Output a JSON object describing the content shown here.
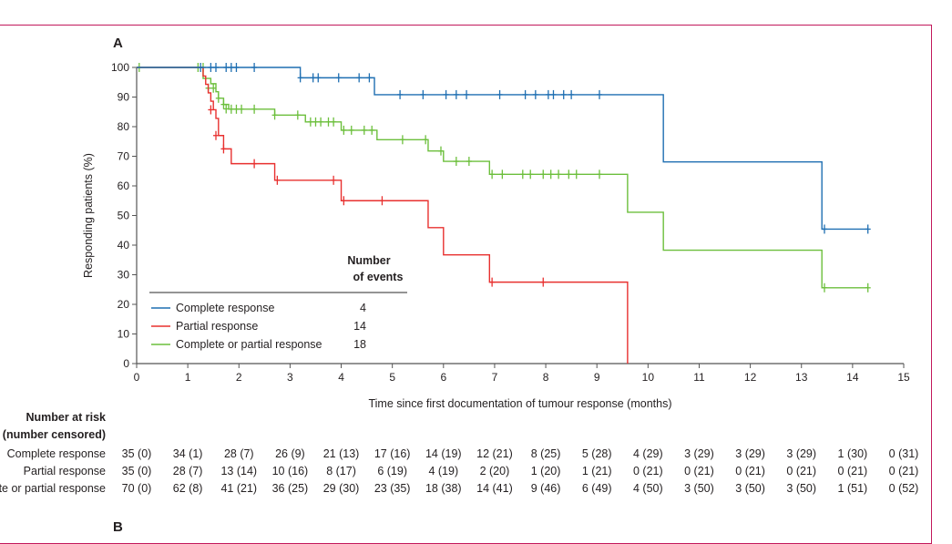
{
  "panel_labels": {
    "a": "A",
    "b": "B"
  },
  "legend": {
    "header_line1": "Number",
    "header_line2": "of events",
    "items": [
      {
        "label": "Complete response",
        "events": "4",
        "color": "#1f6fb2"
      },
      {
        "label": "Partial response",
        "events": "14",
        "color": "#e8302f"
      },
      {
        "label": "Complete or partial response",
        "events": "18",
        "color": "#6cbf3c"
      }
    ]
  },
  "risk_table": {
    "title_line1": "Number at risk",
    "title_line2": "(number censored)",
    "rows": [
      {
        "label": "Complete response",
        "values": [
          "35 (0)",
          "34 (1)",
          "28 (7)",
          "26 (9)",
          "21 (13)",
          "17 (16)",
          "14 (19)",
          "12 (21)",
          "8 (25)",
          "5 (28)",
          "4 (29)",
          "3 (29)",
          "3 (29)",
          "3 (29)",
          "1 (30)",
          "0 (31)"
        ]
      },
      {
        "label": "Partial response",
        "values": [
          "35 (0)",
          "28 (7)",
          "13 (14)",
          "10 (16)",
          "8 (17)",
          "6 (19)",
          "4 (19)",
          "2 (20)",
          "1 (20)",
          "1 (21)",
          "0 (21)",
          "0 (21)",
          "0 (21)",
          "0 (21)",
          "0 (21)",
          "0 (21)"
        ]
      },
      {
        "label": "Complete or partial response",
        "values": [
          "70 (0)",
          "62 (8)",
          "41 (21)",
          "36 (25)",
          "29 (30)",
          "23 (35)",
          "18 (38)",
          "14 (41)",
          "9 (46)",
          "6 (49)",
          "4 (50)",
          "3 (50)",
          "3 (50)",
          "3 (50)",
          "1 (51)",
          "0 (52)"
        ]
      }
    ]
  },
  "chart_data": {
    "type": "line",
    "subtype": "kaplan-meier-step",
    "xlabel": "Time since first documentation of tumour response (months)",
    "ylabel": "Responding patients (%)",
    "xlim": [
      0,
      15
    ],
    "ylim": [
      0,
      100
    ],
    "xticks": [
      "0",
      "1",
      "2",
      "3",
      "4",
      "5",
      "6",
      "7",
      "8",
      "9",
      "10",
      "11",
      "12",
      "13",
      "14",
      "15"
    ],
    "yticks": [
      "0",
      "10",
      "20",
      "30",
      "40",
      "50",
      "60",
      "70",
      "80",
      "90",
      "100"
    ],
    "grid": false,
    "legend_position": "bottom-left",
    "series": [
      {
        "name": "Complete response",
        "color": "#1f6fb2",
        "steps": [
          [
            0,
            100
          ],
          [
            3.2,
            96.5
          ],
          [
            4.65,
            90.8
          ],
          [
            10.3,
            68.1
          ],
          [
            13.4,
            45.4
          ],
          [
            14.3,
            45.4
          ]
        ],
        "censored": [
          [
            1.25,
            100
          ],
          [
            1.45,
            100
          ],
          [
            1.55,
            100
          ],
          [
            1.75,
            100
          ],
          [
            1.85,
            100
          ],
          [
            1.95,
            100
          ],
          [
            2.3,
            100
          ],
          [
            3.2,
            96.5
          ],
          [
            3.45,
            96.5
          ],
          [
            3.55,
            96.5
          ],
          [
            3.95,
            96.5
          ],
          [
            4.35,
            96.5
          ],
          [
            4.55,
            96.5
          ],
          [
            5.15,
            90.8
          ],
          [
            5.6,
            90.8
          ],
          [
            6.05,
            90.8
          ],
          [
            6.25,
            90.8
          ],
          [
            6.45,
            90.8
          ],
          [
            7.1,
            90.8
          ],
          [
            7.6,
            90.8
          ],
          [
            7.8,
            90.8
          ],
          [
            8.05,
            90.8
          ],
          [
            8.15,
            90.8
          ],
          [
            8.35,
            90.8
          ],
          [
            8.5,
            90.8
          ],
          [
            9.05,
            90.8
          ],
          [
            13.45,
            45.4
          ],
          [
            14.3,
            45.4
          ]
        ]
      },
      {
        "name": "Partial response",
        "color": "#e8302f",
        "steps": [
          [
            0,
            100
          ],
          [
            1.3,
            97.1
          ],
          [
            1.35,
            94.3
          ],
          [
            1.4,
            91.4
          ],
          [
            1.45,
            88.6
          ],
          [
            1.5,
            85.7
          ],
          [
            1.55,
            82.8
          ],
          [
            1.6,
            77
          ],
          [
            1.7,
            72.5
          ],
          [
            1.85,
            67.5
          ],
          [
            2.7,
            61.9
          ],
          [
            4.0,
            55
          ],
          [
            5.7,
            45.9
          ],
          [
            6.0,
            36.7
          ],
          [
            6.9,
            27.5
          ],
          [
            9.6,
            0
          ]
        ],
        "censored": [
          [
            1.45,
            85.7
          ],
          [
            1.55,
            77
          ],
          [
            1.7,
            72.5
          ],
          [
            2.3,
            67.5
          ],
          [
            2.75,
            61.9
          ],
          [
            3.85,
            61.9
          ],
          [
            4.05,
            55
          ],
          [
            4.8,
            55
          ],
          [
            6.95,
            27.5
          ],
          [
            7.95,
            27.5
          ]
        ]
      },
      {
        "name": "Complete or partial response",
        "color": "#6cbf3c",
        "steps": [
          [
            0,
            100
          ],
          [
            1.3,
            96.3
          ],
          [
            1.45,
            94.5
          ],
          [
            1.55,
            91.8
          ],
          [
            1.6,
            89.6
          ],
          [
            1.7,
            87.5
          ],
          [
            1.8,
            85.9
          ],
          [
            2.7,
            83.9
          ],
          [
            3.3,
            81.6
          ],
          [
            4.0,
            78.8
          ],
          [
            4.7,
            75.6
          ],
          [
            5.7,
            71.8
          ],
          [
            6.0,
            68.3
          ],
          [
            6.9,
            63.9
          ],
          [
            9.6,
            51.1
          ],
          [
            10.3,
            38.3
          ],
          [
            13.4,
            25.6
          ],
          [
            14.3,
            25.6
          ]
        ],
        "censored": [
          [
            0.05,
            100
          ],
          [
            1.2,
            100
          ],
          [
            1.3,
            100
          ],
          [
            1.4,
            93
          ],
          [
            1.5,
            93
          ],
          [
            1.6,
            89.6
          ],
          [
            1.7,
            87.5
          ],
          [
            1.75,
            86
          ],
          [
            1.85,
            85.9
          ],
          [
            1.95,
            85.9
          ],
          [
            2.05,
            85.9
          ],
          [
            2.3,
            85.9
          ],
          [
            2.7,
            83.9
          ],
          [
            3.15,
            83.9
          ],
          [
            3.4,
            81.6
          ],
          [
            3.5,
            81.6
          ],
          [
            3.6,
            81.6
          ],
          [
            3.75,
            81.6
          ],
          [
            3.85,
            81.6
          ],
          [
            4.05,
            78.8
          ],
          [
            4.2,
            78.8
          ],
          [
            4.45,
            78.8
          ],
          [
            4.6,
            78.8
          ],
          [
            5.2,
            75.6
          ],
          [
            5.65,
            75.6
          ],
          [
            5.95,
            71.8
          ],
          [
            6.25,
            68.3
          ],
          [
            6.5,
            68.3
          ],
          [
            6.95,
            63.9
          ],
          [
            7.15,
            63.9
          ],
          [
            7.55,
            63.9
          ],
          [
            7.7,
            63.9
          ],
          [
            7.95,
            63.9
          ],
          [
            8.1,
            63.9
          ],
          [
            8.25,
            63.9
          ],
          [
            8.45,
            63.9
          ],
          [
            8.6,
            63.9
          ],
          [
            9.05,
            63.9
          ],
          [
            13.45,
            25.6
          ],
          [
            14.3,
            25.6
          ]
        ]
      }
    ]
  }
}
